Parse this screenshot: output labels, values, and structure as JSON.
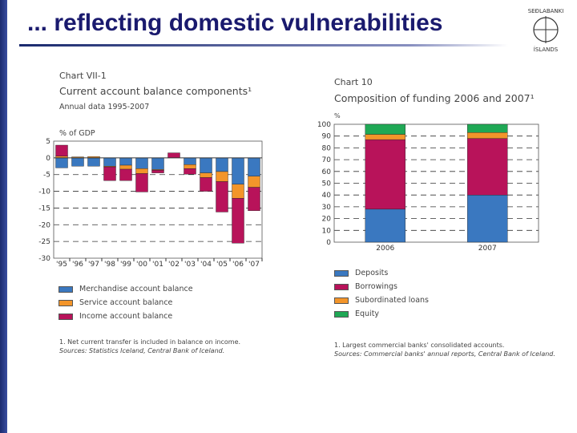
{
  "slide": {
    "title": "... reflecting domestic vulnerabilities",
    "logo_text": "SEÐLABANKI ÍSLANDS"
  },
  "chart_data": [
    {
      "type": "bar",
      "stacked": true,
      "label": "Chart VII-1",
      "title": "Current account balance components¹",
      "subtitle": "Annual data 1995-2007",
      "ylabel": "% of GDP",
      "ylim": [
        -30,
        5
      ],
      "yticks": [
        5,
        0,
        -5,
        -10,
        -15,
        -20,
        -25,
        -30
      ],
      "grid": true,
      "categories": [
        "'95",
        "'96",
        "'97",
        "'98",
        "'99",
        "'00",
        "'01",
        "'02",
        "'03",
        "'04",
        "'05",
        "'06",
        "'07"
      ],
      "series": [
        {
          "name": "Merchandise account balance",
          "color": "#3a78c0",
          "values": [
            -3,
            -2.5,
            -2.5,
            -2.5,
            -2.2,
            -3.2,
            -3.5,
            0,
            -2,
            -4.5,
            -4.1,
            -7.9,
            -5.5
          ]
        },
        {
          "name": "Service account balance",
          "color": "#f3952a",
          "values": [
            0.5,
            0.3,
            0.4,
            -0.2,
            -1.2,
            -1.5,
            -0.2,
            0,
            -1.2,
            -1.4,
            -3,
            -4.2,
            -3.3
          ]
        },
        {
          "name": "Income account balance",
          "color": "#b8135a",
          "values": [
            3.3,
            0,
            0,
            -4.1,
            -3.4,
            -5.5,
            -0.8,
            1.5,
            -1.7,
            -4.1,
            -9.1,
            -13.4,
            -7
          ]
        }
      ],
      "footnote": "1. Net current transfer is included in balance on income.",
      "source": "Sources: Statistics Iceland, Central Bank of Iceland."
    },
    {
      "type": "bar",
      "stacked": true,
      "label": "Chart 10",
      "title": "Composition of funding 2006 and 2007¹",
      "ylabel": "%",
      "ylim": [
        0,
        100
      ],
      "yticks": [
        100,
        90,
        80,
        70,
        60,
        50,
        40,
        30,
        20,
        10,
        0
      ],
      "grid": true,
      "categories": [
        "2006",
        "2007"
      ],
      "series": [
        {
          "name": "Deposits",
          "color": "#3a78c0",
          "values": [
            28,
            40
          ]
        },
        {
          "name": "Borrowings",
          "color": "#b8135a",
          "values": [
            59,
            48
          ]
        },
        {
          "name": "Subordinated loans",
          "color": "#f3952a",
          "values": [
            4.5,
            5
          ]
        },
        {
          "name": "Equity",
          "color": "#1fa855",
          "values": [
            8.5,
            7
          ]
        }
      ],
      "footnote": "1. Largest commercial banks' consolidated accounts.",
      "source": "Sources: Commercial banks' annual reports, Central Bank of Iceland."
    }
  ]
}
